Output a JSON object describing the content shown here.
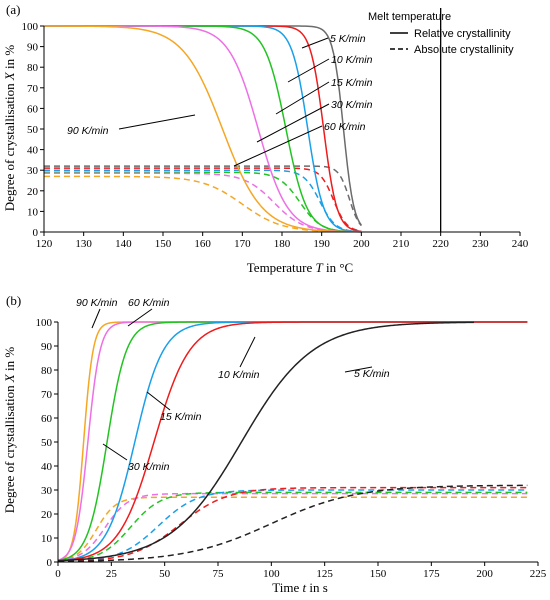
{
  "colors": {
    "90 K/min": "#f5a623",
    "60 K/min": "#ee6fe6",
    "30 K/min": "#22c322",
    "15 K/min": "#1aa0e8",
    "10 K/min": "#ee1c1c",
    "5 K/min": "#222222",
    "5 K/min (a)": "#6b6b6b"
  },
  "chart_data": [
    {
      "panel": "(a)",
      "type": "line",
      "xlabel_main": "Temperature ",
      "xlabel_var": "T",
      "xlabel_unit": " in °C",
      "ylabel_main": "Degree of crystallisation ",
      "ylabel_var": "X",
      "ylabel_unit": " in %",
      "xlim": [
        120,
        240
      ],
      "ylim": [
        0,
        100
      ],
      "xticks": [
        120,
        130,
        140,
        150,
        160,
        170,
        180,
        190,
        200,
        210,
        220,
        230,
        240
      ],
      "yticks": [
        0,
        10,
        20,
        30,
        40,
        50,
        60,
        70,
        80,
        90,
        100
      ],
      "melt_temperature": 220,
      "legend": {
        "title": "Melt temperature",
        "relative": "Relative crystallinity",
        "absolute": "Absolute crystallinity",
        "position": "top-right"
      },
      "series": [
        {
          "name": "5 K/min",
          "relative_t50": 195.5,
          "relative_k": 0.75,
          "absolute_max": 32,
          "absolute_t50": 197.0,
          "absolute_k": 0.75
        },
        {
          "name": "10 K/min",
          "relative_t50": 190.5,
          "relative_k": 0.6,
          "absolute_max": 31,
          "absolute_t50": 193.0,
          "absolute_k": 0.6
        },
        {
          "name": "15 K/min",
          "relative_t50": 186.5,
          "relative_k": 0.5,
          "absolute_max": 30,
          "absolute_t50": 189.5,
          "absolute_k": 0.5
        },
        {
          "name": "30 K/min",
          "relative_t50": 181.0,
          "relative_k": 0.38,
          "absolute_max": 29,
          "absolute_t50": 184.5,
          "absolute_k": 0.38
        },
        {
          "name": "60 K/min",
          "relative_t50": 174.0,
          "relative_k": 0.27,
          "absolute_max": 28.5,
          "absolute_t50": 178.0,
          "absolute_k": 0.27
        },
        {
          "name": "90 K/min",
          "relative_t50": 165.0,
          "relative_k": 0.2,
          "absolute_max": 27,
          "absolute_t50": 170.0,
          "absolute_k": 0.2
        }
      ],
      "annotations": [
        "5 K/min",
        "10 K/min",
        "15 K/min",
        "30 K/min",
        "60 K/min",
        "90 K/min"
      ]
    },
    {
      "panel": "(b)",
      "type": "line",
      "xlabel_main": "Time ",
      "xlabel_var": "t",
      "xlabel_unit": " in s",
      "ylabel_main": "Degree of crystallisation ",
      "ylabel_var": "X",
      "ylabel_unit": " in %",
      "xlim": [
        0,
        225
      ],
      "ylim": [
        0,
        100
      ],
      "xticks": [
        0,
        25,
        50,
        75,
        100,
        125,
        150,
        175,
        200,
        225
      ],
      "yticks": [
        0,
        10,
        20,
        30,
        40,
        50,
        60,
        70,
        80,
        90,
        100
      ],
      "series": [
        {
          "name": "90 K/min",
          "relative_t50": 12,
          "relative_k": 0.45,
          "relative_end": 220,
          "absolute_max": 27,
          "absolute_t50": 18,
          "absolute_k": 0.22,
          "absolute_end": 220
        },
        {
          "name": "60 K/min",
          "relative_t50": 14,
          "relative_k": 0.35,
          "relative_end": 220,
          "absolute_max": 28.5,
          "absolute_t50": 22,
          "absolute_k": 0.18,
          "absolute_end": 220
        },
        {
          "name": "30 K/min",
          "relative_t50": 23,
          "relative_k": 0.22,
          "relative_end": 220,
          "absolute_max": 29,
          "absolute_t50": 34,
          "absolute_k": 0.14,
          "absolute_end": 220
        },
        {
          "name": "15 K/min",
          "relative_t50": 36,
          "relative_k": 0.15,
          "relative_end": 220,
          "absolute_max": 30,
          "absolute_t50": 47,
          "absolute_k": 0.11,
          "absolute_end": 220
        },
        {
          "name": "10 K/min",
          "relative_t50": 45,
          "relative_k": 0.12,
          "relative_end": 220,
          "absolute_max": 31,
          "absolute_t50": 57,
          "absolute_k": 0.09,
          "absolute_end": 220
        },
        {
          "name": "5 K/min",
          "relative_t50": 86,
          "relative_k": 0.06,
          "relative_end": 195,
          "absolute_max": 32,
          "absolute_t50": 100,
          "absolute_k": 0.05,
          "absolute_end": 220
        }
      ],
      "annotations": [
        "90 K/min",
        "60 K/min",
        "10 K/min",
        "5 K/min",
        "15 K/min",
        "30 K/min"
      ]
    }
  ]
}
